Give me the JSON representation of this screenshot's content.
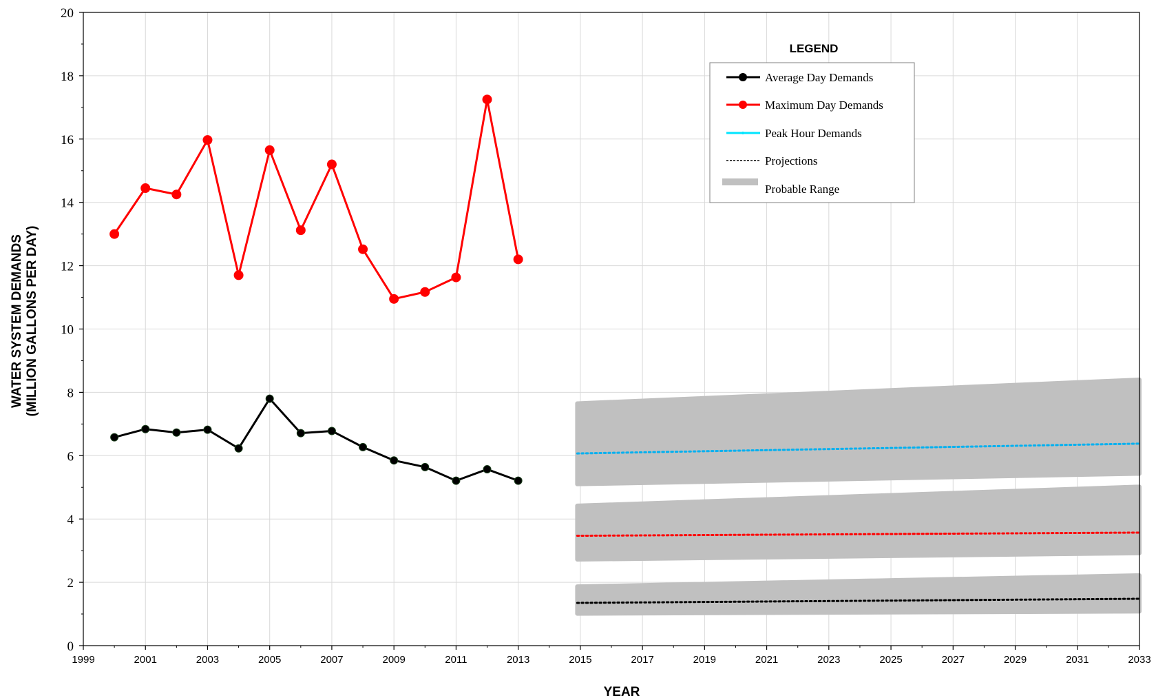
{
  "chart_data": {
    "type": "line",
    "title": "",
    "xlabel": "YEAR",
    "ylabel_line1": "WATER SYSTEM DEMANDS",
    "ylabel_line2": "(MILLION GALLONS PER DAY)",
    "xlim": [
      1999,
      2033
    ],
    "ylim": [
      0,
      20
    ],
    "x_ticks": [
      1999,
      2001,
      2003,
      2005,
      2007,
      2009,
      2011,
      2013,
      2015,
      2017,
      2019,
      2021,
      2023,
      2025,
      2027,
      2029,
      2031,
      2033
    ],
    "y_ticks": [
      0,
      2,
      4,
      6,
      8,
      10,
      12,
      14,
      16,
      18,
      20
    ],
    "grid": true,
    "legend_title": "LEGEND",
    "legend_placement": "top-right",
    "legend": [
      {
        "label": "Average Day Demands",
        "style": "line-marker",
        "color": "#000000"
      },
      {
        "label": "Maximum Day Demands",
        "style": "line-marker",
        "color": "#ff0000"
      },
      {
        "label": "Peak Hour Demands",
        "style": "line",
        "color": "#00e5ff"
      },
      {
        "label": "Projections",
        "style": "dashed",
        "color": "#000000"
      },
      {
        "label": "Probable Range",
        "style": "band",
        "color": "#c0c0c0"
      }
    ],
    "series": [
      {
        "name": "Average Day Demands",
        "color": "#000000",
        "x": [
          2000,
          2001,
          2002,
          2003,
          2004,
          2005,
          2006,
          2007,
          2008,
          2009,
          2010,
          2011,
          2012,
          2013
        ],
        "values": [
          6.58,
          6.84,
          6.73,
          6.82,
          6.23,
          7.8,
          6.71,
          6.78,
          6.27,
          5.85,
          5.64,
          5.21,
          5.57,
          5.21
        ]
      },
      {
        "name": "Maximum Day Demands",
        "color": "#ff0000",
        "x": [
          2000,
          2001,
          2002,
          2003,
          2004,
          2005,
          2006,
          2007,
          2008,
          2009,
          2010,
          2011,
          2012,
          2013
        ],
        "values": [
          13.0,
          14.45,
          14.25,
          15.97,
          11.7,
          15.65,
          13.12,
          15.2,
          12.52,
          10.95,
          11.17,
          11.63,
          17.25,
          12.2
        ]
      }
    ],
    "projections": [
      {
        "color": "#00b0f0",
        "x": [
          2014.9,
          2033
        ],
        "values": [
          6.07,
          6.38
        ],
        "range_low": [
          5.1,
          5.43
        ],
        "range_high": [
          7.65,
          8.4
        ]
      },
      {
        "color": "#ff0000",
        "x": [
          2014.9,
          2033
        ],
        "values": [
          3.47,
          3.57
        ],
        "range_low": [
          2.72,
          2.92
        ],
        "range_high": [
          4.42,
          5.02
        ]
      },
      {
        "color": "#000000",
        "x": [
          2014.9,
          2033
        ],
        "values": [
          1.35,
          1.48
        ],
        "range_low": [
          1.01,
          1.08
        ],
        "range_high": [
          1.87,
          2.22
        ]
      }
    ],
    "band_color": "#c0c0c0",
    "grid_color": "#d9d9d9"
  }
}
